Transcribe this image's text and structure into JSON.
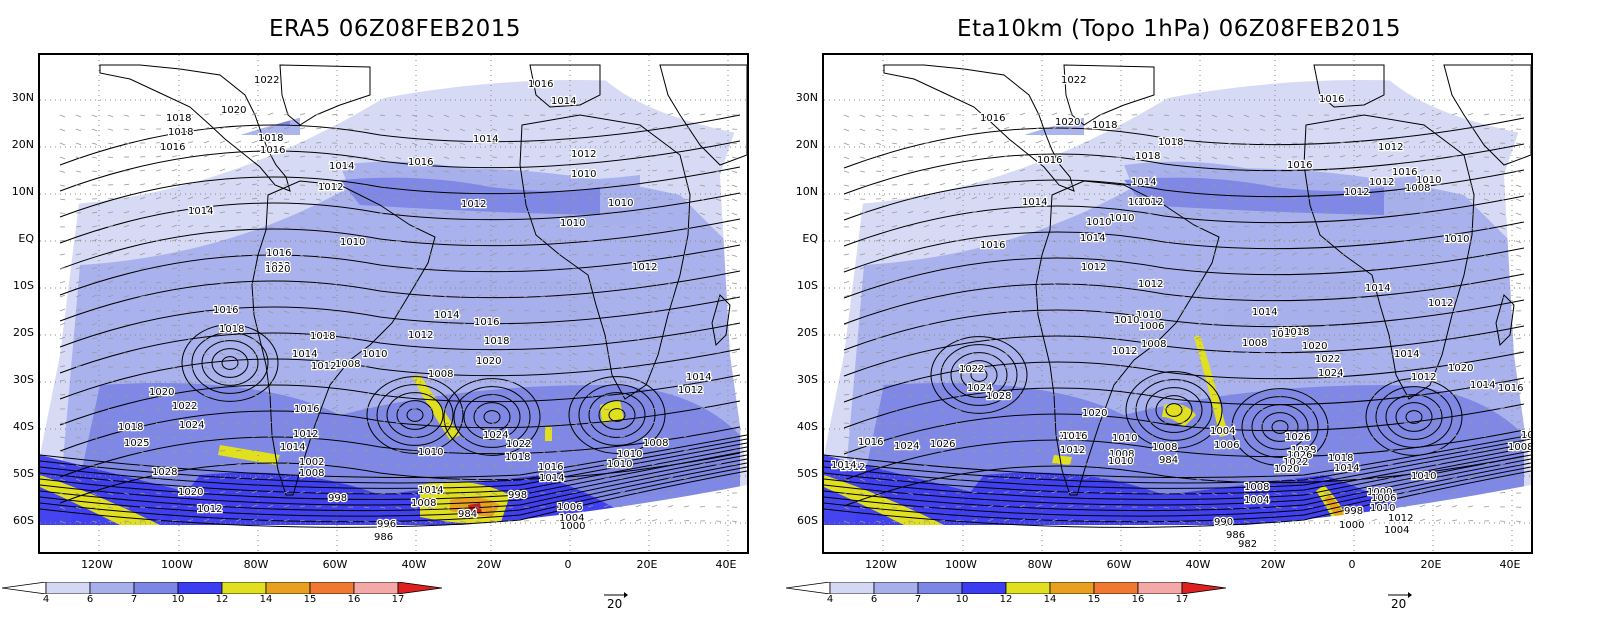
{
  "panels": [
    {
      "id": "era5",
      "title": "ERA5 06Z08FEB2015",
      "isobars": [
        {
          "label": "1022"
        },
        {
          "label": "1020"
        },
        {
          "label": "1018"
        },
        {
          "label": "1018"
        },
        {
          "label": "1016"
        },
        {
          "label": "1018"
        },
        {
          "label": "1016"
        },
        {
          "label": "1014"
        },
        {
          "label": "1016"
        },
        {
          "label": "1014"
        },
        {
          "label": "1016"
        },
        {
          "label": "1014"
        },
        {
          "label": "1012"
        },
        {
          "label": "1012"
        },
        {
          "label": "1010"
        },
        {
          "label": "1014"
        },
        {
          "label": "1012"
        },
        {
          "label": "1010"
        },
        {
          "label": "1010"
        },
        {
          "label": "1010"
        },
        {
          "label": "1016"
        },
        {
          "label": "1012"
        },
        {
          "label": "1012"
        },
        {
          "label": "1020"
        },
        {
          "label": "1016"
        },
        {
          "label": "1018"
        },
        {
          "label": "1014"
        },
        {
          "label": "1018"
        },
        {
          "label": "1012"
        },
        {
          "label": "1008"
        },
        {
          "label": "1010"
        },
        {
          "label": "1014"
        },
        {
          "label": "1016"
        },
        {
          "label": "1012"
        },
        {
          "label": "1018"
        },
        {
          "label": "1020"
        },
        {
          "label": "1008"
        },
        {
          "label": "1012"
        },
        {
          "label": "1014"
        },
        {
          "label": "1020"
        },
        {
          "label": "1022"
        },
        {
          "label": "1024"
        },
        {
          "label": "1018"
        },
        {
          "label": "1025"
        },
        {
          "label": "1016"
        },
        {
          "label": "1014"
        },
        {
          "label": "1012"
        },
        {
          "label": "1002"
        },
        {
          "label": "1008"
        },
        {
          "label": "1010"
        },
        {
          "label": "1024"
        },
        {
          "label": "1022"
        },
        {
          "label": "1018"
        },
        {
          "label": "1016"
        },
        {
          "label": "1014"
        },
        {
          "label": "1010"
        },
        {
          "label": "1008"
        },
        {
          "label": "1010"
        },
        {
          "label": "1028"
        },
        {
          "label": "1020"
        },
        {
          "label": "1012"
        },
        {
          "label": "998"
        },
        {
          "label": "1014"
        },
        {
          "label": "1008"
        },
        {
          "label": "998"
        },
        {
          "label": "984"
        },
        {
          "label": "996"
        },
        {
          "label": "986"
        },
        {
          "label": "1006"
        },
        {
          "label": "1004"
        },
        {
          "label": "1000"
        }
      ]
    },
    {
      "id": "eta",
      "title": "Eta10km (Topo 1hPa) 06Z08FEB2015",
      "isobars": [
        {
          "label": "1022"
        },
        {
          "label": "1016"
        },
        {
          "label": "1020"
        },
        {
          "label": "1018"
        },
        {
          "label": "1018"
        },
        {
          "label": "1016"
        },
        {
          "label": "1016"
        },
        {
          "label": "1018"
        },
        {
          "label": "1016"
        },
        {
          "label": "1014"
        },
        {
          "label": "1012"
        },
        {
          "label": "1014"
        },
        {
          "label": "1012"
        },
        {
          "label": "1016"
        },
        {
          "label": "1010"
        },
        {
          "label": "1014"
        },
        {
          "label": "1012"
        },
        {
          "label": "1012"
        },
        {
          "label": "1010"
        },
        {
          "label": "1008"
        },
        {
          "label": "1014"
        },
        {
          "label": "1010"
        },
        {
          "label": "1016"
        },
        {
          "label": "1010"
        },
        {
          "label": "1012"
        },
        {
          "label": "1012"
        },
        {
          "label": "1014"
        },
        {
          "label": "1018"
        },
        {
          "label": "1010"
        },
        {
          "label": "1014"
        },
        {
          "label": "1016"
        },
        {
          "label": "1018"
        },
        {
          "label": "1010"
        },
        {
          "label": "1006"
        },
        {
          "label": "1008"
        },
        {
          "label": "1012"
        },
        {
          "label": "1008"
        },
        {
          "label": "1020"
        },
        {
          "label": "1022"
        },
        {
          "label": "1024"
        },
        {
          "label": "1012"
        },
        {
          "label": "1014"
        },
        {
          "label": "1012"
        },
        {
          "label": "1014"
        },
        {
          "label": "1016"
        },
        {
          "label": "1020"
        },
        {
          "label": "1022"
        },
        {
          "label": "1024"
        },
        {
          "label": "1028"
        },
        {
          "label": "1020"
        },
        {
          "label": "1010"
        },
        {
          "label": "1008"
        },
        {
          "label": "1004"
        },
        {
          "label": "1006"
        },
        {
          "label": "1026"
        },
        {
          "label": "1028"
        },
        {
          "label": "1026"
        },
        {
          "label": "1022"
        },
        {
          "label": "1020"
        },
        {
          "label": "1018"
        },
        {
          "label": "1014"
        },
        {
          "label": "1010"
        },
        {
          "label": "1008"
        },
        {
          "label": "1018"
        },
        {
          "label": "1024"
        },
        {
          "label": "1026"
        },
        {
          "label": "1016"
        },
        {
          "label": "1012"
        },
        {
          "label": "1014"
        },
        {
          "label": "1016"
        },
        {
          "label": "1010"
        },
        {
          "label": "1008"
        },
        {
          "label": "984"
        },
        {
          "label": "1008"
        },
        {
          "label": "1004"
        },
        {
          "label": "1000"
        },
        {
          "label": "998"
        },
        {
          "label": "1006"
        },
        {
          "label": "1010"
        },
        {
          "label": "1012"
        },
        {
          "label": "1004"
        },
        {
          "label": "1000"
        },
        {
          "label": "990"
        },
        {
          "label": "986"
        },
        {
          "label": "982"
        },
        {
          "label": "1016"
        },
        {
          "label": "1012"
        }
      ]
    }
  ],
  "lat_labels": [
    "30N",
    "20N",
    "10N",
    "EQ",
    "10S",
    "20S",
    "30S",
    "40S",
    "50S",
    "60S"
  ],
  "lon_labels": [
    "120W",
    "100W",
    "80W",
    "60W",
    "40W",
    "20W",
    "0",
    "20E",
    "40E"
  ],
  "colorbar": {
    "levels": [
      "4",
      "6",
      "7",
      "10",
      "12",
      "14",
      "15",
      "16",
      "17"
    ],
    "colors": [
      "#ffffff",
      "#d4d8f4",
      "#a8b0ec",
      "#7c86e4",
      "#3c3cf0",
      "#e0e020",
      "#e8a020",
      "#f07830",
      "#f4a8a8",
      "#e02020"
    ]
  },
  "vector_ref": {
    "label": "20"
  },
  "shading": {
    "light": "#d4d8f4",
    "mid": "#a8b0ec",
    "strong": "#7c86e4",
    "deep": "#3c3cf0",
    "yellow": "#e0e020",
    "orange": "#e8a020",
    "red": "#c02020"
  }
}
